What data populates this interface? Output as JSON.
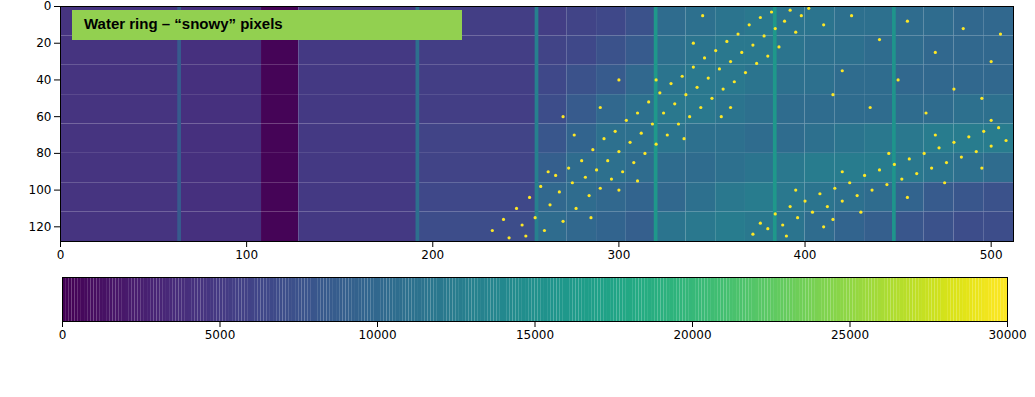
{
  "chart_data": {
    "type": "heatmap",
    "annotations": [
      "Water ring – “snowy” pixels"
    ],
    "color": "viridis",
    "xlim": [
      0,
      512
    ],
    "ylim": [
      128,
      0
    ],
    "xticks": [
      0,
      100,
      200,
      300,
      400,
      500
    ],
    "yticks": [
      0,
      20,
      40,
      60,
      80,
      100,
      120
    ],
    "colorbar": {
      "range": [
        0,
        30000
      ],
      "ticks": [
        0,
        5000,
        10000,
        15000,
        20000,
        25000,
        30000
      ]
    },
    "cells": {
      "x_edges": [
        0,
        64,
        108,
        128,
        192,
        256,
        272,
        288,
        304,
        320,
        336,
        352,
        368,
        384,
        400,
        416,
        432,
        448,
        464,
        480,
        496,
        512
      ],
      "y_edges": [
        0,
        16,
        32,
        48,
        64,
        80,
        96,
        112,
        128
      ],
      "values": [
        [
          4500,
          4200,
          300,
          5000,
          5500,
          5500,
          6000,
          6500,
          7500,
          10500,
          11000,
          11500,
          12000,
          11500,
          11500,
          11000,
          11000,
          10500,
          10500,
          10000,
          10000
        ],
        [
          4500,
          4200,
          300,
          5000,
          5500,
          6000,
          6500,
          7500,
          8500,
          11000,
          11500,
          12000,
          12000,
          11500,
          11000,
          11000,
          10500,
          10500,
          10000,
          10000,
          10000
        ],
        [
          4500,
          4200,
          300,
          5000,
          5500,
          6500,
          7500,
          8500,
          10000,
          11500,
          12000,
          12000,
          11500,
          11000,
          11000,
          10500,
          10500,
          10000,
          10000,
          10000,
          10000
        ],
        [
          4500,
          4200,
          300,
          5000,
          5500,
          7000,
          8500,
          10000,
          11000,
          12000,
          12000,
          11500,
          11000,
          10500,
          10500,
          10500,
          10500,
          10500,
          10500,
          11000,
          11000
        ],
        [
          4500,
          4200,
          300,
          5000,
          6000,
          8000,
          9500,
          11000,
          11000,
          11500,
          11000,
          11000,
          10500,
          10500,
          11000,
          11500,
          12000,
          12000,
          12500,
          12500,
          12500
        ],
        [
          4500,
          4200,
          300,
          5000,
          6000,
          9000,
          10500,
          11000,
          10500,
          10500,
          10500,
          11000,
          11500,
          12000,
          12500,
          12500,
          12500,
          12000,
          11500,
          11000,
          10500
        ],
        [
          4500,
          4200,
          300,
          5000,
          6500,
          10000,
          10500,
          10000,
          9500,
          10000,
          11000,
          12000,
          12500,
          12000,
          11500,
          11000,
          10500,
          9500,
          8500,
          8000,
          7500
        ],
        [
          4500,
          4200,
          300,
          5000,
          7000,
          10500,
          10000,
          9500,
          9000,
          11500,
          12000,
          12500,
          12000,
          11500,
          10500,
          9500,
          9000,
          8000,
          7500,
          7000,
          7000
        ]
      ]
    },
    "column_lines": [
      {
        "x0": 63,
        "x1": 65,
        "value": 8500
      },
      {
        "x0": 191,
        "x1": 193,
        "value": 11000
      },
      {
        "x0": 255,
        "x1": 257,
        "value": 13000
      },
      {
        "x0": 319,
        "x1": 321,
        "value": 16000
      },
      {
        "x0": 383,
        "x1": 385,
        "value": 16000
      },
      {
        "x0": 447,
        "x1": 449,
        "value": 15500
      }
    ],
    "snowy_pixels": {
      "value": 30000,
      "points": [
        [
          232,
          122
        ],
        [
          238,
          116
        ],
        [
          241,
          126
        ],
        [
          245,
          110
        ],
        [
          248,
          119
        ],
        [
          252,
          104
        ],
        [
          255,
          115
        ],
        [
          258,
          98
        ],
        [
          260,
          122
        ],
        [
          263,
          108
        ],
        [
          266,
          92
        ],
        [
          268,
          101
        ],
        [
          270,
          117
        ],
        [
          273,
          88
        ],
        [
          275,
          96
        ],
        [
          277,
          110
        ],
        [
          280,
          84
        ],
        [
          282,
          93
        ],
        [
          284,
          103
        ],
        [
          286,
          78
        ],
        [
          288,
          89
        ],
        [
          290,
          99
        ],
        [
          292,
          72
        ],
        [
          294,
          84
        ],
        [
          296,
          94
        ],
        [
          298,
          68
        ],
        [
          300,
          79
        ],
        [
          302,
          90
        ],
        [
          304,
          62
        ],
        [
          306,
          74
        ],
        [
          308,
          85
        ],
        [
          310,
          58
        ],
        [
          312,
          69
        ],
        [
          314,
          80
        ],
        [
          316,
          52
        ],
        [
          318,
          64
        ],
        [
          320,
          75
        ],
        [
          322,
          47
        ],
        [
          324,
          58
        ],
        [
          326,
          70
        ],
        [
          328,
          42
        ],
        [
          330,
          53
        ],
        [
          332,
          64
        ],
        [
          334,
          38
        ],
        [
          336,
          48
        ],
        [
          338,
          60
        ],
        [
          340,
          33
        ],
        [
          342,
          44
        ],
        [
          344,
          55
        ],
        [
          346,
          28
        ],
        [
          348,
          39
        ],
        [
          350,
          50
        ],
        [
          352,
          24
        ],
        [
          354,
          34
        ],
        [
          356,
          45
        ],
        [
          358,
          19
        ],
        [
          360,
          30
        ],
        [
          362,
          41
        ],
        [
          364,
          15
        ],
        [
          366,
          25
        ],
        [
          368,
          36
        ],
        [
          370,
          10
        ],
        [
          372,
          21
        ],
        [
          374,
          31
        ],
        [
          376,
          6
        ],
        [
          378,
          16
        ],
        [
          380,
          27
        ],
        [
          382,
          3
        ],
        [
          384,
          12
        ],
        [
          386,
          22
        ],
        [
          389,
          8
        ],
        [
          392,
          2
        ],
        [
          395,
          14
        ],
        [
          398,
          5
        ],
        [
          402,
          1
        ],
        [
          285,
          115
        ],
        [
          262,
          90
        ],
        [
          300,
          100
        ],
        [
          320,
          40
        ],
        [
          340,
          20
        ],
        [
          250,
          125
        ],
        [
          310,
          95
        ],
        [
          276,
          70
        ],
        [
          355,
          60
        ],
        [
          335,
          72
        ],
        [
          372,
          124
        ],
        [
          376,
          118
        ],
        [
          380,
          121
        ],
        [
          384,
          113
        ],
        [
          388,
          119
        ],
        [
          392,
          109
        ],
        [
          396,
          115
        ],
        [
          400,
          106
        ],
        [
          404,
          112
        ],
        [
          408,
          102
        ],
        [
          412,
          109
        ],
        [
          416,
          99
        ],
        [
          420,
          106
        ],
        [
          424,
          96
        ],
        [
          428,
          103
        ],
        [
          432,
          92
        ],
        [
          436,
          100
        ],
        [
          440,
          89
        ],
        [
          444,
          97
        ],
        [
          448,
          86
        ],
        [
          452,
          94
        ],
        [
          456,
          83
        ],
        [
          460,
          91
        ],
        [
          464,
          80
        ],
        [
          468,
          88
        ],
        [
          472,
          77
        ],
        [
          476,
          85
        ],
        [
          480,
          74
        ],
        [
          484,
          82
        ],
        [
          488,
          71
        ],
        [
          492,
          79
        ],
        [
          496,
          68
        ],
        [
          500,
          76
        ],
        [
          504,
          66
        ],
        [
          508,
          73
        ],
        [
          410,
          120
        ],
        [
          430,
          112
        ],
        [
          455,
          104
        ],
        [
          475,
          96
        ],
        [
          495,
          88
        ],
        [
          395,
          100
        ],
        [
          420,
          90
        ],
        [
          445,
          80
        ],
        [
          470,
          70
        ],
        [
          500,
          62
        ],
        [
          390,
          125
        ],
        [
          415,
          116
        ],
        [
          410,
          10
        ],
        [
          425,
          5
        ],
        [
          440,
          18
        ],
        [
          455,
          8
        ],
        [
          470,
          25
        ],
        [
          485,
          12
        ],
        [
          500,
          30
        ],
        [
          420,
          35
        ],
        [
          450,
          40
        ],
        [
          480,
          45
        ],
        [
          505,
          15
        ],
        [
          435,
          55
        ],
        [
          465,
          58
        ],
        [
          495,
          50
        ],
        [
          415,
          48
        ],
        [
          345,
          5
        ],
        [
          360,
          55
        ],
        [
          300,
          40
        ],
        [
          290,
          55
        ],
        [
          270,
          60
        ]
      ]
    }
  }
}
